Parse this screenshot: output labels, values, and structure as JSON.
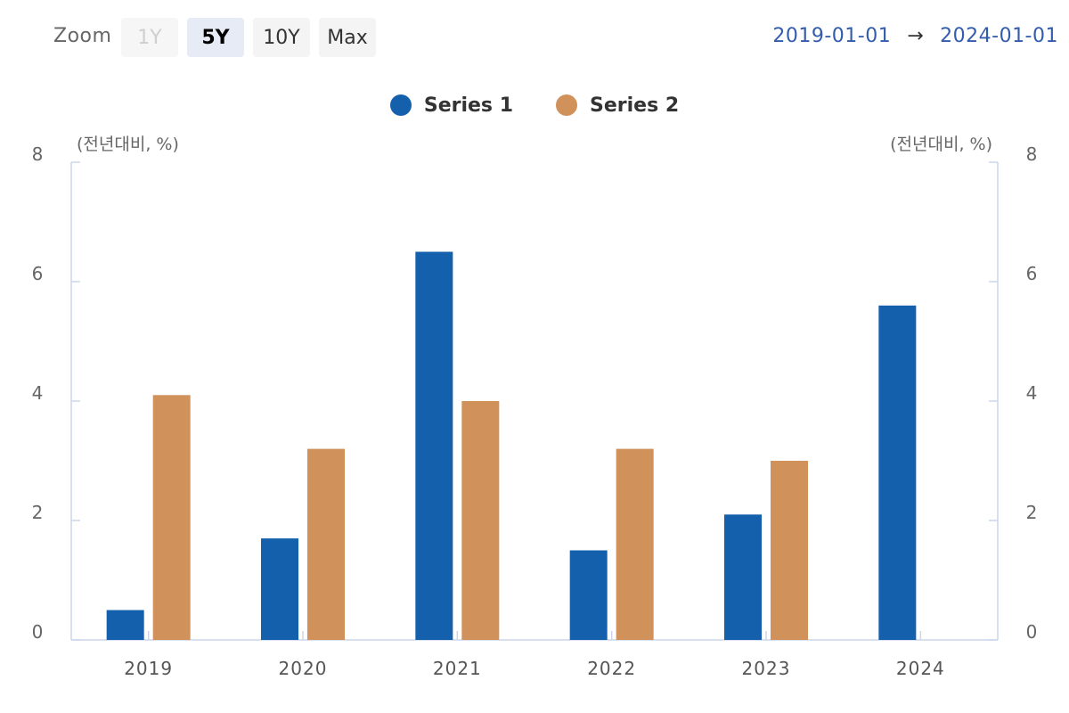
{
  "toolbar": {
    "zoom_label": "Zoom",
    "buttons": [
      {
        "label": "1Y",
        "state": "disabled"
      },
      {
        "label": "5Y",
        "state": "active"
      },
      {
        "label": "10Y",
        "state": "normal"
      },
      {
        "label": "Max",
        "state": "normal"
      }
    ],
    "range_from": "2019-01-01",
    "range_arrow": "→",
    "range_to": "2024-01-01"
  },
  "chart_data": {
    "type": "bar",
    "categories": [
      "2019",
      "2020",
      "2021",
      "2022",
      "2023",
      "2024"
    ],
    "series": [
      {
        "name": "Series 1",
        "color": "#1560ad",
        "values": [
          0.5,
          1.7,
          6.5,
          1.5,
          2.1,
          5.6
        ]
      },
      {
        "name": "Series 2",
        "color": "#d1915a",
        "values": [
          4.1,
          3.2,
          4.0,
          3.2,
          3.0,
          null
        ]
      }
    ],
    "ylabel_left": "(전년대비, %)",
    "ylabel_right": "(전년대비, %)",
    "ylim": [
      0,
      8
    ],
    "yticks": [
      0,
      2,
      4,
      6,
      8
    ],
    "legend": "top-center",
    "grid": false
  }
}
